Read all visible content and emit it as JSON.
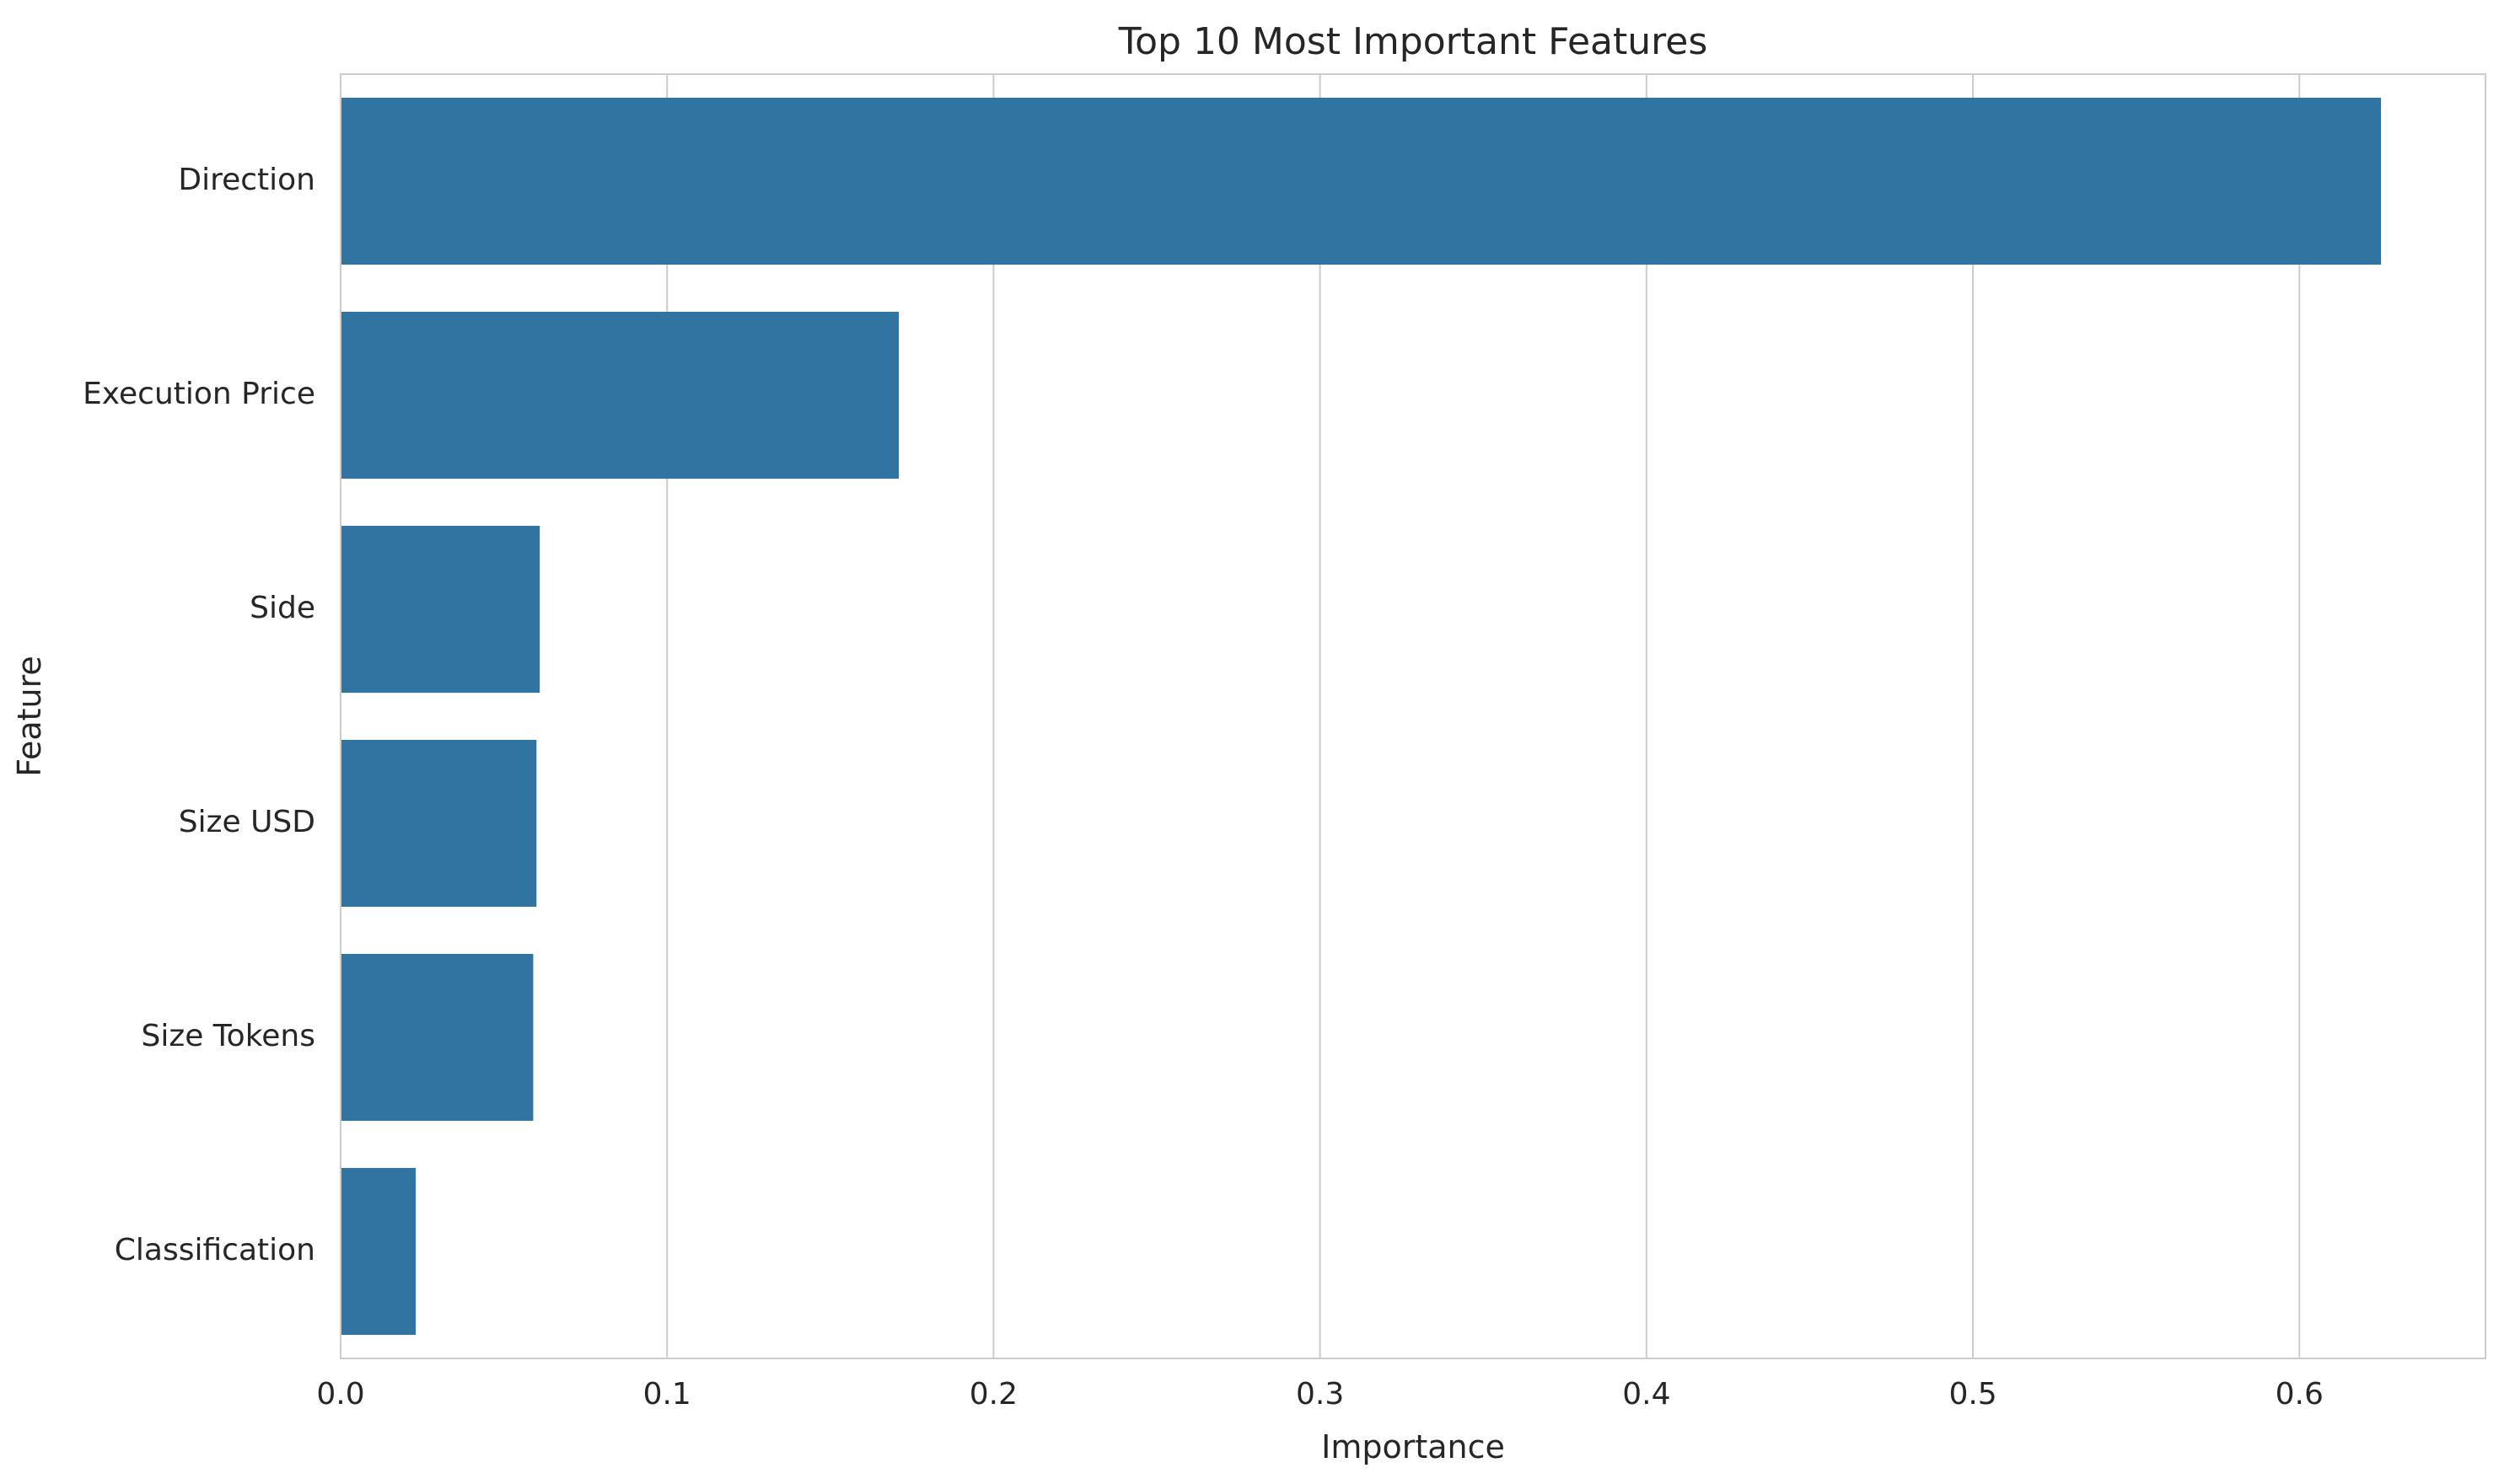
{
  "chart_data": {
    "type": "bar",
    "orientation": "horizontal",
    "title": "Top 10 Most Important Features",
    "xlabel": "Importance",
    "ylabel": "Feature",
    "categories": [
      "Direction",
      "Execution Price",
      "Side",
      "Size USD",
      "Size Tokens",
      "Classification"
    ],
    "values": [
      0.625,
      0.171,
      0.061,
      0.06,
      0.059,
      0.023
    ],
    "xlim": [
      0,
      0.657
    ],
    "xticks": [
      0.0,
      0.1,
      0.2,
      0.3,
      0.4,
      0.5,
      0.6
    ],
    "xtick_labels": [
      "0.0",
      "0.1",
      "0.2",
      "0.3",
      "0.4",
      "0.5",
      "0.6"
    ],
    "grid": "vertical",
    "colors": {
      "bar": "#3274a1",
      "grid": "#cccccc",
      "spine": "#cccccc",
      "text": "#262626"
    }
  }
}
